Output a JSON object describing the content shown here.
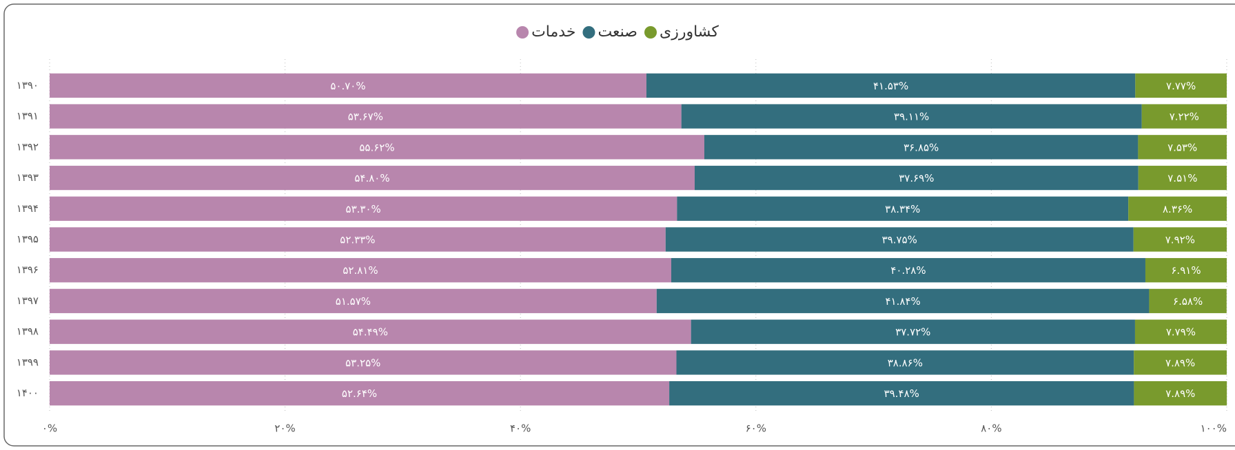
{
  "chart_data": {
    "type": "stacked_bar_horizontal",
    "categories": [
      "۱۳۹۰",
      "۱۳۹۱",
      "۱۳۹۲",
      "۱۳۹۳",
      "۱۳۹۴",
      "۱۳۹۵",
      "۱۳۹۶",
      "۱۳۹۷",
      "۱۳۹۸",
      "۱۳۹۹",
      "۱۴۰۰"
    ],
    "series": [
      {
        "name": "خدمات",
        "color": "#b886ad",
        "values": [
          50.7,
          53.67,
          55.62,
          54.8,
          53.3,
          52.33,
          52.81,
          51.57,
          54.49,
          53.25,
          52.64
        ],
        "value_labels": [
          "۵۰.۷۰%",
          "۵۳.۶۷%",
          "۵۵.۶۲%",
          "۵۴.۸۰%",
          "۵۳.۳۰%",
          "۵۲.۳۳%",
          "۵۲.۸۱%",
          "۵۱.۵۷%",
          "۵۴.۴۹%",
          "۵۳.۲۵%",
          "۵۲.۶۴%"
        ]
      },
      {
        "name": "صنعت",
        "color": "#336e7e",
        "values": [
          41.53,
          39.11,
          36.85,
          37.69,
          38.34,
          39.75,
          40.28,
          41.84,
          37.72,
          38.86,
          39.48
        ],
        "value_labels": [
          "۴۱.۵۳%",
          "۳۹.۱۱%",
          "۳۶.۸۵%",
          "۳۷.۶۹%",
          "۳۸.۳۴%",
          "۳۹.۷۵%",
          "۴۰.۲۸%",
          "۴۱.۸۴%",
          "۳۷.۷۲%",
          "۳۸.۸۶%",
          "۳۹.۴۸%"
        ]
      },
      {
        "name": "کشاورزی",
        "color": "#799a2d",
        "values": [
          7.77,
          7.22,
          7.53,
          7.51,
          8.36,
          7.92,
          6.91,
          6.58,
          7.79,
          7.89,
          7.89
        ],
        "value_labels": [
          "۷.۷۷%",
          "۷.۲۲%",
          "۷.۵۳%",
          "۷.۵۱%",
          "۸.۳۶%",
          "۷.۹۲%",
          "۶.۹۱%",
          "۶.۵۸%",
          "۷.۷۹%",
          "۷.۸۹%",
          "۷.۸۹%"
        ]
      }
    ],
    "xlim": [
      0,
      100
    ],
    "xticks": [
      {
        "value": 0,
        "label": "۰%"
      },
      {
        "value": 20,
        "label": "۲۰%"
      },
      {
        "value": 40,
        "label": "۴۰%"
      },
      {
        "value": 60,
        "label": "۶۰%"
      },
      {
        "value": 80,
        "label": "۸۰%"
      },
      {
        "value": 100,
        "label": "۱۰۰%"
      }
    ],
    "grid": true,
    "legend": "top"
  }
}
